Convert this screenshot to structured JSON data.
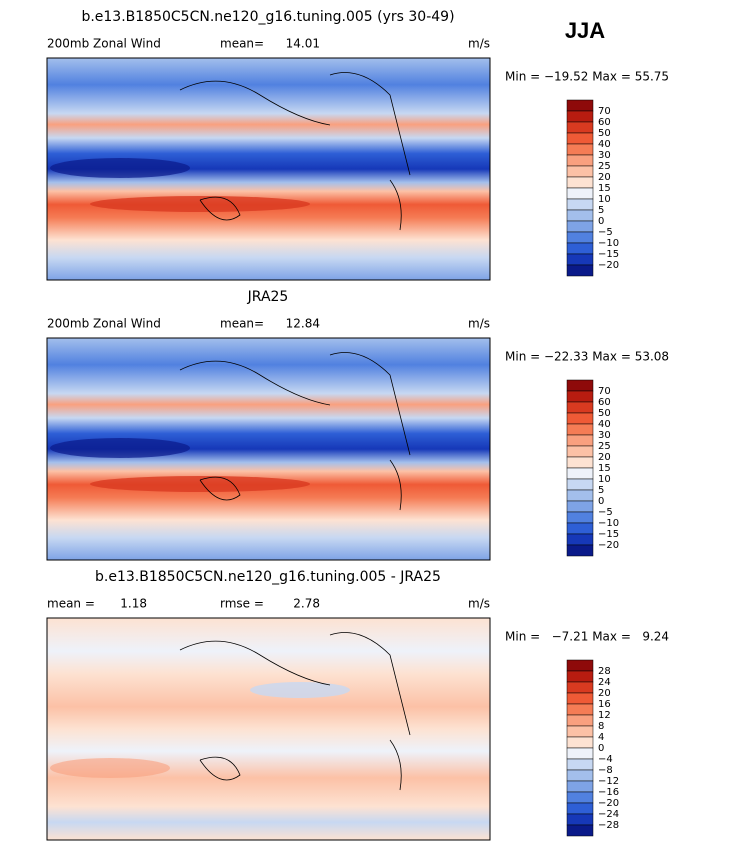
{
  "season": "JJA",
  "panels": [
    {
      "title": "b.e13.B1850C5CN.ne120_g16.tuning.005 (yrs 30-49)",
      "left_label": "200mb Zonal Wind",
      "stats": [
        {
          "label": "mean=",
          "value": "14.01"
        }
      ],
      "units": "m/s",
      "min_max": "Min = −19.52 Max = 55.75",
      "colorbar": {
        "labels": [
          "70",
          "60",
          "50",
          "40",
          "30",
          "25",
          "20",
          "15",
          "10",
          "5",
          "0",
          "−5",
          "−10",
          "−15",
          "−20"
        ],
        "colors": [
          "#8e0a0a",
          "#b81c10",
          "#d93a20",
          "#ef5a36",
          "#f57c55",
          "#f9a07f",
          "#fcc1a6",
          "#fde2d2",
          "#eef2fa",
          "#c7d8f2",
          "#a3bfec",
          "#7ea3e6",
          "#5181e0",
          "#2e5fd6",
          "#1638b8",
          "#0a1a8a"
        ]
      }
    },
    {
      "title": "JRA25",
      "left_label": "200mb Zonal Wind",
      "stats": [
        {
          "label": "mean=",
          "value": "12.84"
        }
      ],
      "units": "m/s",
      "min_max": "Min = −22.33 Max = 53.08",
      "colorbar": {
        "labels": [
          "70",
          "60",
          "50",
          "40",
          "30",
          "25",
          "20",
          "15",
          "10",
          "5",
          "0",
          "−5",
          "−10",
          "−15",
          "−20"
        ],
        "colors": [
          "#8e0a0a",
          "#b81c10",
          "#d93a20",
          "#ef5a36",
          "#f57c55",
          "#f9a07f",
          "#fcc1a6",
          "#fde2d2",
          "#eef2fa",
          "#c7d8f2",
          "#a3bfec",
          "#7ea3e6",
          "#5181e0",
          "#2e5fd6",
          "#1638b8",
          "#0a1a8a"
        ]
      }
    },
    {
      "title": "b.e13.B1850C5CN.ne120_g16.tuning.005 - JRA25",
      "stats": [
        {
          "label": "mean =",
          "value": "1.18"
        },
        {
          "label": "rmse =",
          "value": "2.78"
        }
      ],
      "units": "m/s",
      "min_max": "Min =   −7.21 Max =   9.24",
      "colorbar": {
        "labels": [
          "28",
          "24",
          "20",
          "16",
          "12",
          "8",
          "4",
          "0",
          "−4",
          "−8",
          "−12",
          "−16",
          "−20",
          "−24",
          "−28"
        ],
        "colors": [
          "#8e0a0a",
          "#b81c10",
          "#d93a20",
          "#ef5a36",
          "#f57c55",
          "#f9a07f",
          "#fcc1a6",
          "#fde2d2",
          "#eef2fa",
          "#c7d8f2",
          "#a3bfec",
          "#7ea3e6",
          "#5181e0",
          "#2e5fd6",
          "#1638b8",
          "#0a1a8a"
        ]
      }
    }
  ]
}
